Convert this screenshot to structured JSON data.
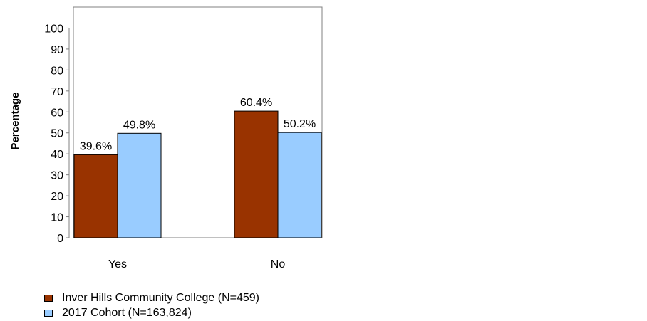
{
  "chart_data": {
    "type": "bar",
    "ylabel": "Percentage",
    "ylim": [
      0,
      100
    ],
    "yticks": [
      0,
      10,
      20,
      30,
      40,
      50,
      60,
      70,
      80,
      90,
      100
    ],
    "categories": [
      "Yes",
      "No"
    ],
    "series": [
      {
        "name": "Inver Hills Community College (N=459)",
        "color": "#993300",
        "values": [
          39.6,
          60.4
        ],
        "labels": [
          "39.6%",
          "60.4%"
        ]
      },
      {
        "name": "2017 Cohort (N=163,824)",
        "color": "#99ccff",
        "values": [
          49.8,
          50.2
        ],
        "labels": [
          "49.8%",
          "50.2%"
        ]
      }
    ],
    "legend_position": "bottom-left",
    "grid": false
  }
}
